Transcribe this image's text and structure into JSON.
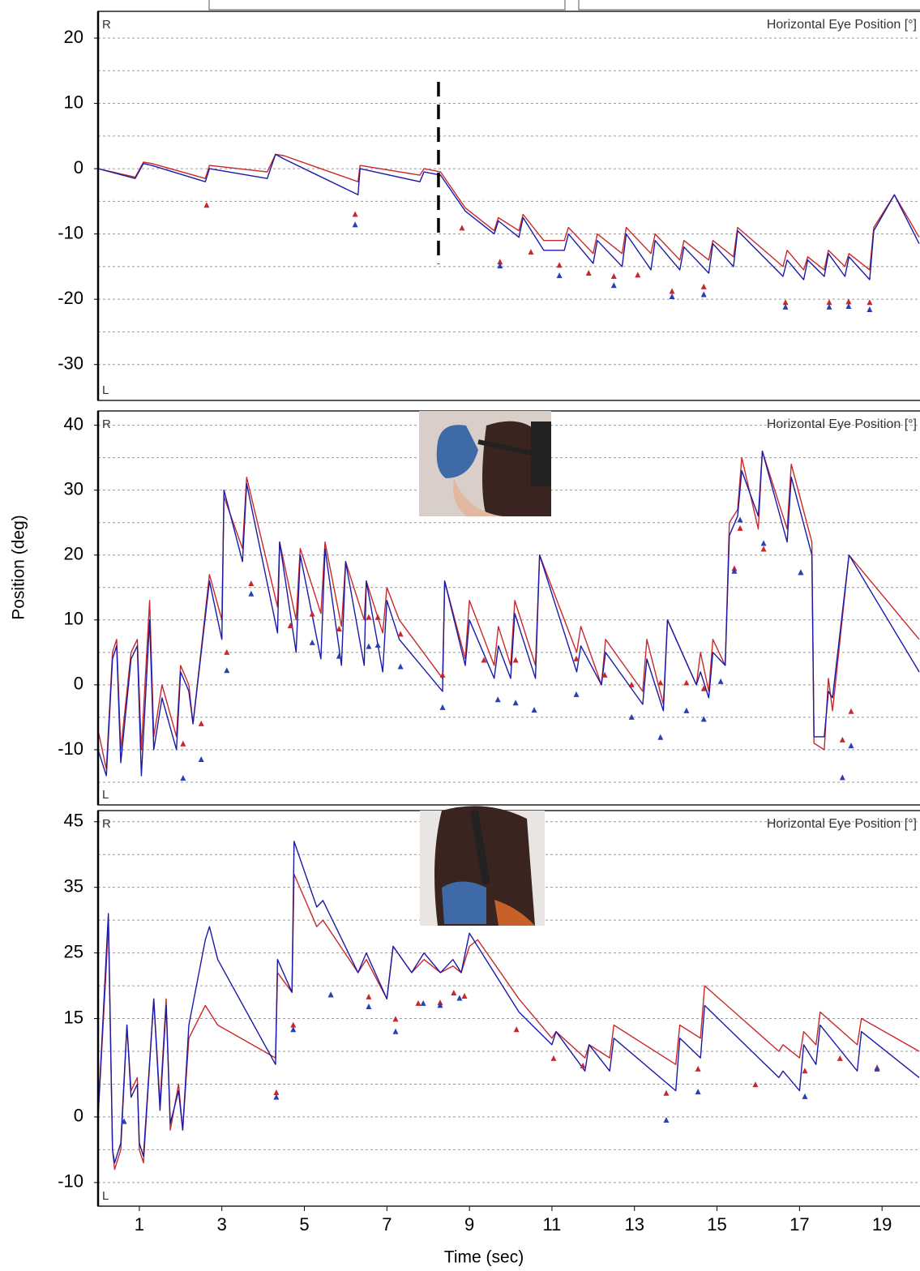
{
  "chart_data": [
    {
      "type": "line",
      "title": "Horizontal Eye Position [°]",
      "top_label": "R",
      "bottom_label": "L",
      "xlim": [
        0,
        19.92
      ],
      "ylim": [
        -35.5,
        24.1
      ],
      "yticks": [
        -30,
        -20,
        -10,
        0,
        10,
        20
      ],
      "ygrid": [
        -30,
        -25,
        -20,
        -15,
        -10,
        -5,
        0,
        5,
        10,
        15,
        20
      ],
      "series": [
        {
          "color": "#c8282a",
          "x": [
            0,
            0.9,
            1.1,
            1.3,
            2.6,
            2.7,
            4.1,
            4.3,
            4.5,
            6.3,
            6.35,
            7.8,
            7.9,
            8.3,
            8.9,
            9.6,
            9.7,
            10.2,
            10.3,
            10.8,
            11.3,
            11.4,
            12,
            12.1,
            12.7,
            12.8,
            13.4,
            13.5,
            14.1,
            14.2,
            14.8,
            14.9,
            15.4,
            15.5,
            16.6,
            16.7,
            17.1,
            17.2,
            17.6,
            17.7,
            18.1,
            18.2,
            18.7,
            18.8,
            19.3,
            19.9
          ],
          "values": [
            0,
            -1.3,
            1,
            0.8,
            -1.5,
            0.5,
            -0.5,
            2.2,
            2,
            -2,
            0.5,
            -1,
            0,
            -0.5,
            -6,
            -9.5,
            -7.5,
            -9.5,
            -7,
            -11,
            -11,
            -9,
            -13,
            -10,
            -13,
            -9,
            -13,
            -10,
            -14,
            -11,
            -14,
            -11,
            -13.5,
            -9,
            -15,
            -12.5,
            -15.5,
            -13.5,
            -15.5,
            -12.5,
            -15,
            -13,
            -15.5,
            -9,
            -4,
            -10.5
          ]
        },
        {
          "color": "#1a1aa8",
          "x": [
            0,
            0.9,
            1.1,
            1.3,
            2.6,
            2.7,
            4.1,
            4.3,
            4.5,
            6.3,
            6.35,
            7.8,
            7.9,
            8.3,
            8.9,
            9.6,
            9.7,
            10.2,
            10.3,
            10.8,
            11.3,
            11.4,
            12,
            12.1,
            12.7,
            12.8,
            13.4,
            13.5,
            14.1,
            14.2,
            14.8,
            14.9,
            15.4,
            15.5,
            16.6,
            16.7,
            17.1,
            17.2,
            17.6,
            17.7,
            18.1,
            18.2,
            18.7,
            18.8,
            19.3,
            19.9
          ],
          "values": [
            0,
            -1.5,
            0.8,
            0.5,
            -2,
            0,
            -1.5,
            2.2,
            1.5,
            -4,
            0,
            -2,
            -0.5,
            -1,
            -6.5,
            -10,
            -8,
            -10.5,
            -7.5,
            -12.5,
            -12.5,
            -10,
            -14.5,
            -11,
            -15,
            -10,
            -15.5,
            -11,
            -15.5,
            -12,
            -16,
            -11.5,
            -15,
            -9.5,
            -16.5,
            -14,
            -17,
            -14,
            -16.5,
            -13,
            -16.5,
            -13.5,
            -17,
            -9.5,
            -4,
            -11.5
          ]
        }
      ],
      "markers": [
        {
          "color": "#c8282a",
          "x": [
            2.63,
            6.23,
            8.82,
            9.74,
            10.49,
            11.18,
            11.89,
            12.5,
            13.08,
            13.91,
            14.68,
            16.66,
            17.72,
            18.19,
            18.7
          ],
          "values": [
            -5.6,
            -7,
            -9.1,
            -14.3,
            -12.8,
            -14.8,
            -16,
            -16.5,
            -16.3,
            -18.8,
            -18.1,
            -20.5,
            -20.5,
            -20.4,
            -20.5
          ]
        },
        {
          "color": "#2840b0",
          "x": [
            6.23,
            9.74,
            11.18,
            12.5,
            13.91,
            14.68,
            16.66,
            17.72,
            18.19,
            18.7
          ],
          "values": [
            -8.6,
            -14.9,
            -16.4,
            -17.9,
            -19.6,
            -19.3,
            -21.2,
            -21.2,
            -21.1,
            -21.6
          ]
        }
      ],
      "annotation_line": {
        "x": 8.25,
        "y": [
          13.3,
          -14.6
        ]
      }
    },
    {
      "type": "line",
      "title": "Horizontal Eye Position [°]",
      "top_label": "R",
      "bottom_label": "L",
      "y_label": "Position (deg)",
      "xlim": [
        0,
        19.92
      ],
      "ylim": [
        -18.5,
        42.2
      ],
      "yticks": [
        -10,
        0,
        10,
        20,
        30,
        40
      ],
      "ygrid": [
        -15,
        -10,
        -5,
        0,
        5,
        10,
        15,
        20,
        25,
        30,
        35,
        40
      ],
      "series": [
        {
          "color": "#c8282a",
          "x": [
            0,
            0.2,
            0.35,
            0.45,
            0.55,
            0.8,
            0.95,
            1.05,
            1.25,
            1.35,
            1.55,
            1.9,
            2.0,
            2.2,
            2.3,
            2.7,
            3.0,
            3.05,
            3.5,
            3.6,
            4.35,
            4.4,
            4.8,
            4.9,
            5.4,
            5.5,
            5.9,
            6.0,
            6.45,
            6.5,
            6.9,
            7.0,
            7.3,
            8.35,
            8.4,
            8.9,
            9.0,
            9.6,
            9.7,
            10.0,
            10.1,
            10.6,
            10.7,
            11.6,
            11.7,
            12.2,
            12.3,
            13.2,
            13.3,
            13.7,
            13.8,
            14.5,
            14.6,
            14.8,
            14.9,
            15.2,
            15.3,
            15.5,
            15.6,
            16.0,
            16.1,
            16.7,
            16.8,
            17.3,
            17.35,
            17.6,
            17.7,
            17.8,
            18.2,
            19.9
          ],
          "values": [
            -7,
            -13,
            5,
            7,
            -10,
            5,
            7,
            -10,
            13,
            -8,
            0,
            -8,
            3,
            0,
            -6,
            17,
            10,
            29,
            21,
            32,
            12,
            22,
            10,
            21,
            11,
            22,
            9,
            19,
            10,
            16,
            8,
            15,
            10,
            1,
            16,
            4,
            13,
            3,
            9,
            3,
            13,
            3,
            20,
            5,
            9,
            0,
            7,
            -1,
            7,
            -3,
            10,
            0,
            5,
            -1,
            7,
            3,
            25,
            27,
            35,
            24,
            36,
            24,
            34,
            22,
            -9,
            -10,
            1,
            -4,
            20,
            7
          ]
        },
        {
          "color": "#1a1aa8",
          "x": [
            0,
            0.2,
            0.35,
            0.45,
            0.55,
            0.8,
            0.95,
            1.05,
            1.25,
            1.35,
            1.55,
            1.9,
            2.0,
            2.2,
            2.3,
            2.7,
            3.0,
            3.05,
            3.5,
            3.6,
            4.35,
            4.4,
            4.8,
            4.9,
            5.4,
            5.5,
            5.9,
            6.0,
            6.45,
            6.5,
            6.9,
            7.0,
            7.3,
            8.35,
            8.4,
            8.9,
            9.0,
            9.6,
            9.7,
            10.0,
            10.1,
            10.6,
            10.7,
            11.6,
            11.7,
            12.2,
            12.3,
            13.2,
            13.3,
            13.7,
            13.8,
            14.5,
            14.6,
            14.8,
            14.9,
            15.2,
            15.3,
            15.5,
            15.6,
            16.0,
            16.1,
            16.7,
            16.8,
            17.3,
            17.35,
            17.6,
            17.7,
            17.8,
            18.2,
            19.9
          ],
          "values": [
            -10,
            -14,
            4,
            6,
            -12,
            4,
            6,
            -14,
            10,
            -10,
            -2,
            -10,
            2,
            -1,
            -6,
            16,
            7,
            30,
            19,
            31,
            8,
            22,
            5,
            20,
            4,
            21,
            3,
            19,
            3,
            16,
            2,
            13,
            7,
            -1,
            16,
            3,
            10,
            1,
            6,
            1,
            11,
            1,
            20,
            2,
            6,
            0,
            5,
            -3,
            4,
            -4,
            10,
            0,
            2,
            -2,
            5,
            3,
            23,
            26,
            33,
            26,
            36,
            22,
            32,
            20,
            -8,
            -8,
            -1,
            -2,
            20,
            2
          ]
        }
      ],
      "markers": [
        {
          "color": "#c8282a",
          "x": [
            2.06,
            2.5,
            3.12,
            3.71,
            4.66,
            5.19,
            5.84,
            6.56,
            6.78,
            7.33,
            8.35,
            9.35,
            10.12,
            11.59,
            12.28,
            12.93,
            13.63,
            14.26,
            14.68,
            15.42,
            15.56,
            16.13,
            17.03,
            18.04,
            18.25
          ],
          "values": [
            -9.1,
            -6,
            5,
            15.6,
            9.1,
            10.9,
            8.6,
            10.4,
            10.4,
            7.8,
            1.5,
            3.8,
            3.8,
            4,
            1.5,
            0,
            0.3,
            0.3,
            -0.6,
            17.9,
            24.1,
            20.9,
            17.3,
            -8.5,
            -4.1
          ]
        },
        {
          "color": "#2840b0",
          "x": [
            2.06,
            2.5,
            3.12,
            3.71,
            5.19,
            5.84,
            6.56,
            6.78,
            7.33,
            8.35,
            9.69,
            10.12,
            10.57,
            11.59,
            12.93,
            13.63,
            14.26,
            14.68,
            15.09,
            15.42,
            15.56,
            16.13,
            17.03,
            18.04,
            18.25
          ],
          "values": [
            -14.4,
            -11.5,
            2.2,
            14,
            6.5,
            4.4,
            5.9,
            6.1,
            2.8,
            -3.5,
            -2.3,
            -2.8,
            -3.9,
            -1.5,
            -5,
            -8.1,
            -4,
            -5.3,
            0.5,
            17.5,
            25.4,
            21.8,
            17.3,
            -14.3,
            -9.4
          ]
        }
      ]
    },
    {
      "type": "line",
      "title": "Horizontal Eye Position [°]",
      "top_label": "R",
      "bottom_label": "L",
      "x_label": "Time (sec)",
      "xlim": [
        0,
        19.92
      ],
      "ylim": [
        -13.6,
        46.7
      ],
      "xticks": [
        1,
        3,
        5,
        7,
        9,
        11,
        13,
        15,
        17,
        19
      ],
      "yticks": [
        -10,
        0,
        15,
        25,
        35,
        45
      ],
      "ygrid": [
        -10,
        -5,
        0,
        5,
        10,
        15,
        20,
        25,
        30,
        35,
        40,
        45
      ],
      "series": [
        {
          "color": "#c8282a",
          "x": [
            0,
            0.2,
            0.25,
            0.35,
            0.4,
            0.55,
            0.7,
            0.8,
            0.95,
            1.0,
            1.1,
            1.35,
            1.5,
            1.65,
            1.75,
            1.95,
            2.05,
            2.2,
            2.6,
            2.9,
            4.3,
            4.35,
            4.7,
            4.75,
            5.3,
            5.45,
            6.3,
            6.5,
            7.0,
            7.15,
            7.6,
            7.9,
            8.3,
            8.6,
            8.8,
            9.0,
            9.2,
            10.2,
            11.0,
            11.1,
            11.8,
            11.9,
            12.4,
            12.5,
            14.0,
            14.1,
            14.6,
            14.7,
            16.5,
            16.6,
            17.0,
            17.1,
            17.4,
            17.5,
            18.4,
            18.5,
            19.9
          ],
          "values": [
            0,
            23,
            30,
            -5,
            -8,
            -5,
            14,
            4,
            6,
            -5,
            -7,
            18,
            2,
            18,
            -2,
            5,
            -2,
            12,
            17,
            14,
            9,
            22,
            19,
            37,
            29,
            30,
            22,
            24,
            18,
            26,
            22,
            24,
            22,
            23,
            22,
            26,
            27,
            18,
            12,
            13,
            9,
            11,
            9,
            14,
            8,
            14,
            12,
            20,
            10,
            11,
            9,
            13,
            11,
            16,
            11,
            15,
            10
          ]
        },
        {
          "color": "#1a1aa8",
          "x": [
            0,
            0.2,
            0.25,
            0.35,
            0.4,
            0.55,
            0.7,
            0.8,
            0.95,
            1.0,
            1.1,
            1.35,
            1.5,
            1.65,
            1.75,
            1.95,
            2.05,
            2.2,
            2.6,
            2.7,
            2.9,
            4.3,
            4.35,
            4.7,
            4.75,
            5.3,
            5.45,
            6.3,
            6.5,
            7.0,
            7.15,
            7.6,
            7.9,
            8.3,
            8.6,
            8.8,
            9.0,
            9.2,
            10.2,
            11.0,
            11.1,
            11.8,
            11.9,
            12.4,
            12.5,
            14.0,
            14.1,
            14.6,
            14.7,
            16.5,
            16.6,
            17.0,
            17.1,
            17.4,
            17.5,
            18.4,
            18.5,
            19.9
          ],
          "values": [
            0,
            25,
            31,
            -5,
            -7,
            -4,
            14,
            3,
            5,
            -4,
            -6,
            18,
            1,
            17,
            -1,
            4,
            -2,
            14,
            27,
            29,
            24,
            8,
            24,
            19,
            42,
            32,
            33,
            22,
            25,
            18,
            26,
            22,
            25,
            22,
            24,
            22,
            28,
            26,
            16,
            11,
            13,
            7,
            11,
            7,
            12,
            4,
            12,
            9,
            17,
            6,
            7,
            4,
            11,
            8,
            14,
            7,
            13,
            6
          ]
        }
      ],
      "markers": [
        {
          "color": "#c8282a",
          "x": [
            4.32,
            4.73,
            5.64,
            6.56,
            7.21,
            7.76,
            8.29,
            8.62,
            8.88,
            10.14,
            11.04,
            11.75,
            13.77,
            14.54,
            15.93,
            17.13,
            17.98,
            18.88
          ],
          "values": [
            3.7,
            14,
            18.6,
            18.3,
            14.9,
            17.3,
            17.4,
            18.9,
            18.4,
            13.3,
            8.9,
            7.8,
            3.6,
            7.3,
            4.9,
            7,
            8.9,
            7.5
          ]
        },
        {
          "color": "#2840b0",
          "x": [
            0.63,
            4.32,
            4.73,
            5.64,
            6.56,
            7.21,
            7.88,
            8.29,
            8.76,
            13.77,
            14.54,
            17.13,
            18.88
          ],
          "values": [
            -0.7,
            3,
            13.3,
            18.6,
            16.8,
            13,
            17.3,
            17,
            18.1,
            -0.5,
            3.8,
            3.1,
            7.3
          ]
        }
      ]
    }
  ]
}
